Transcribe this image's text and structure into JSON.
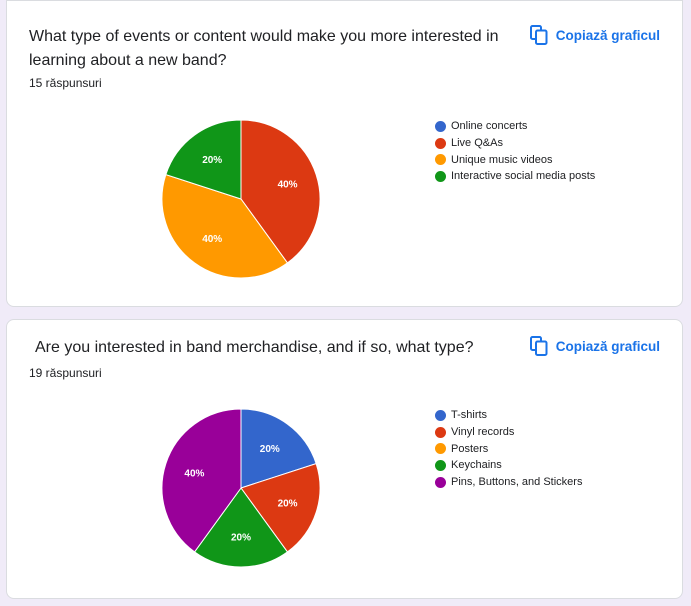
{
  "copy_label": "Copiază graficul",
  "chart_data": [
    {
      "type": "pie",
      "title": "What type of events or content would make you more interested in learning about a new band?",
      "responses_text": "15 răspunsuri",
      "categories": [
        "Online concerts",
        "Live Q&As",
        "Unique music videos",
        "Interactive social media posts"
      ],
      "values": [
        0,
        40,
        40,
        20
      ],
      "colors": [
        "#3366cc",
        "#dc3912",
        "#ff9900",
        "#109618"
      ],
      "labels": [
        "",
        "40%",
        "40%",
        "20%"
      ],
      "legend_position": "right"
    },
    {
      "type": "pie",
      "title": "Are you interested in band merchandise, and if so, what type?",
      "responses_text": "19 răspunsuri",
      "categories": [
        "T-shirts",
        "Vinyl records",
        "Posters",
        "Keychains",
        "Pins, Buttons, and Stickers"
      ],
      "values": [
        20,
        20,
        0,
        20,
        40
      ],
      "colors": [
        "#3366cc",
        "#dc3912",
        "#ff9900",
        "#109618",
        "#990099"
      ],
      "labels": [
        "20%",
        "20%",
        "",
        "20%",
        "40%"
      ],
      "legend_position": "right"
    }
  ]
}
